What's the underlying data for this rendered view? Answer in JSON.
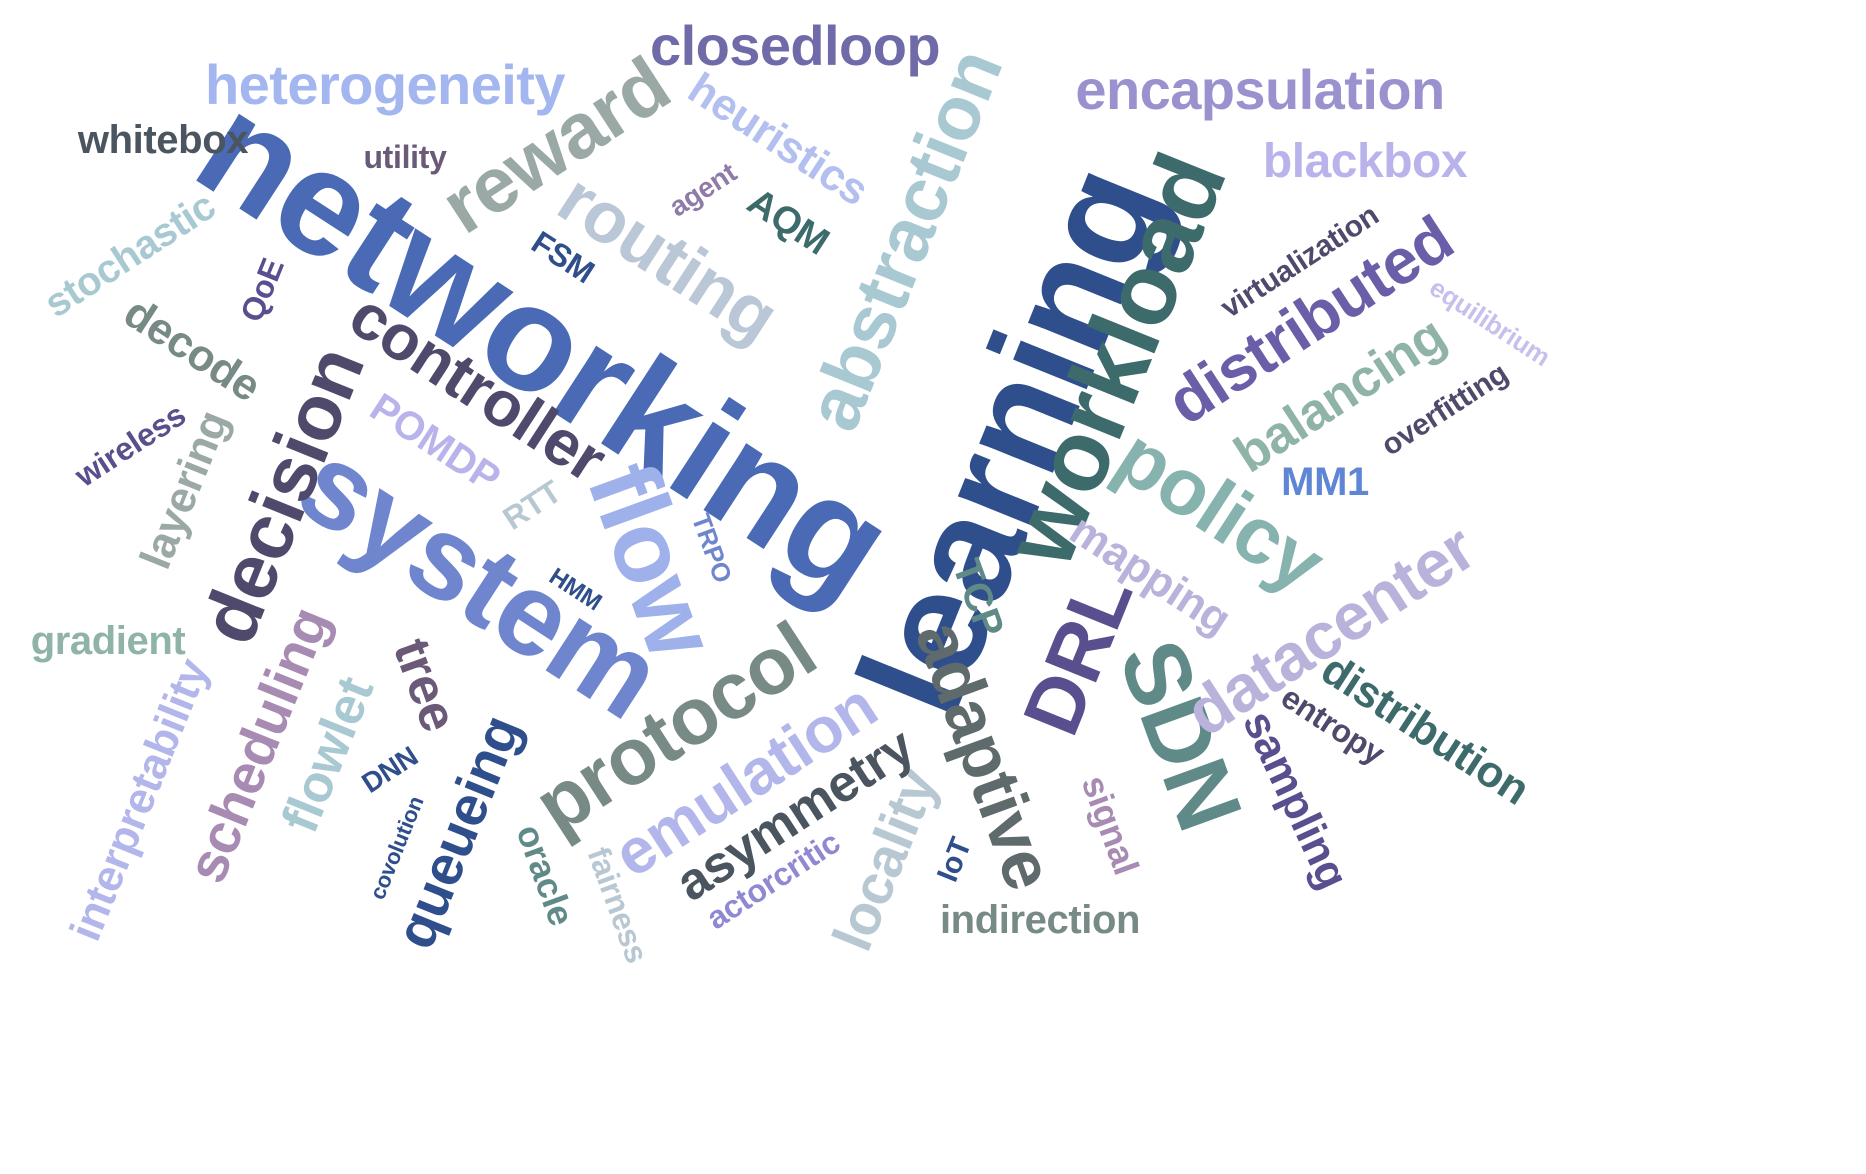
{
  "words": [
    {
      "text": "learning",
      "color": "#2f4e8c"
    },
    {
      "text": "networking",
      "color": "#4a6ab5"
    },
    {
      "text": "system",
      "color": "#6f86cf"
    },
    {
      "text": "workload",
      "color": "#3d6b6b"
    },
    {
      "text": "flow",
      "color": "#9fb1ea"
    },
    {
      "text": "abstraction",
      "color": "#a9c9d2"
    },
    {
      "text": "reward",
      "color": "#9aa8a6"
    },
    {
      "text": "controller",
      "color": "#4f4a6b"
    },
    {
      "text": "routing",
      "color": "#b9c7d6"
    },
    {
      "text": "decision",
      "color": "#4f4a6b"
    },
    {
      "text": "protocol",
      "color": "#778a86"
    },
    {
      "text": "policy",
      "color": "#86b3ad"
    },
    {
      "text": "distributed",
      "color": "#6a5ea8"
    },
    {
      "text": "SDN",
      "color": "#5f8a88"
    },
    {
      "text": "DRL",
      "color": "#5a4f8e"
    },
    {
      "text": "datacenter",
      "color": "#b9b3dc"
    },
    {
      "text": "adaptive",
      "color": "#5f6a6d"
    },
    {
      "text": "emulation",
      "color": "#b3b6ea"
    },
    {
      "text": "asymmetry",
      "color": "#4b5560"
    },
    {
      "text": "queueing",
      "color": "#2f4e8c"
    },
    {
      "text": "scheduling",
      "color": "#a78bb3"
    },
    {
      "text": "encapsulation",
      "color": "#9a92cf"
    },
    {
      "text": "heterogeneity",
      "color": "#a3b6ef"
    },
    {
      "text": "closedloop",
      "color": "#6f6aa8"
    },
    {
      "text": "balancing",
      "color": "#8fb3a8"
    },
    {
      "text": "locality",
      "color": "#b8c8d2"
    },
    {
      "text": "flowlet",
      "color": "#a9c9d2"
    },
    {
      "text": "tree",
      "color": "#6a5a78"
    },
    {
      "text": "mapping",
      "color": "#b9b3dc"
    },
    {
      "text": "distribution",
      "color": "#3d6b6b"
    },
    {
      "text": "sampling",
      "color": "#5a4f8e"
    },
    {
      "text": "interpretability",
      "color": "#b3b6ea"
    },
    {
      "text": "layering",
      "color": "#9aa8a6"
    },
    {
      "text": "decode",
      "color": "#778a86"
    },
    {
      "text": "heuristics",
      "color": "#b3c0ef"
    },
    {
      "text": "blackbox",
      "color": "#b9b3ec"
    },
    {
      "text": "whitebox",
      "color": "#4b5560"
    },
    {
      "text": "stochastic",
      "color": "#a9c9d2"
    },
    {
      "text": "POMDP",
      "color": "#b9b3ec"
    },
    {
      "text": "gradient",
      "color": "#8fb3a8"
    },
    {
      "text": "indirection",
      "color": "#778a86"
    },
    {
      "text": "signal",
      "color": "#a78bb3"
    },
    {
      "text": "oracle",
      "color": "#5f8a88"
    },
    {
      "text": "fairness",
      "color": "#b8c8d2"
    },
    {
      "text": "actorcritic",
      "color": "#8f88d2"
    },
    {
      "text": "entropy",
      "color": "#4f4a6b"
    },
    {
      "text": "overfitting",
      "color": "#4f4a6b"
    },
    {
      "text": "virtualization",
      "color": "#4f4a6b"
    },
    {
      "text": "equilibrium",
      "color": "#c7c0ec"
    },
    {
      "text": "MM1",
      "color": "#5f86d4"
    },
    {
      "text": "AQM",
      "color": "#3d6b6b"
    },
    {
      "text": "TCP",
      "color": "#5f8a88"
    },
    {
      "text": "FSM",
      "color": "#2f4e8c"
    },
    {
      "text": "QoE",
      "color": "#5a4f8e"
    },
    {
      "text": "RTT",
      "color": "#b8c8d2"
    },
    {
      "text": "TRPO",
      "color": "#6f86cf"
    },
    {
      "text": "HMM",
      "color": "#2f4e8c"
    },
    {
      "text": "DNN",
      "color": "#2f4e8c"
    },
    {
      "text": "IoT",
      "color": "#2f4e8c"
    },
    {
      "text": "covolution",
      "color": "#2f4e8c"
    },
    {
      "text": "utility",
      "color": "#6a5a78"
    },
    {
      "text": "agent",
      "color": "#8f7aa8"
    },
    {
      "text": "wireless",
      "color": "#5a4f8e"
    }
  ]
}
